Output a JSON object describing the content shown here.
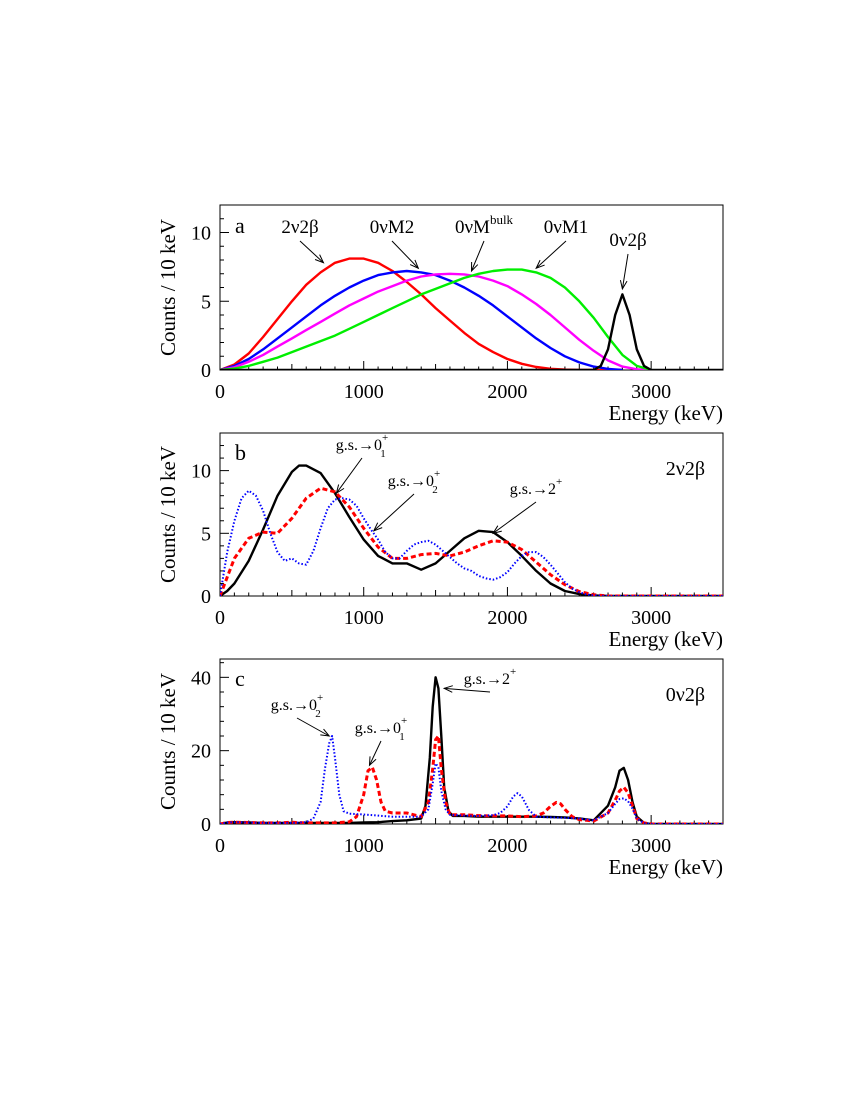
{
  "chart_data": [
    {
      "type": "line",
      "panel_label": "a",
      "xlabel": "Energy (keV)",
      "ylabel": "Counts / 10 keV",
      "xlim": [
        0,
        3500
      ],
      "ylim": [
        0,
        12
      ],
      "xticks": [
        0,
        1000,
        2000,
        3000
      ],
      "yticks": [
        0,
        5,
        10
      ],
      "grid": false,
      "annotations": [
        {
          "text": "2ν2β",
          "sup": "",
          "sub": "",
          "target": [
            720,
            7.8
          ]
        },
        {
          "text": "0νM2",
          "sup": "",
          "sub": "",
          "target": [
            1380,
            7.4
          ]
        },
        {
          "text": "0νM",
          "sup": "bulk",
          "sub": "",
          "target": [
            1750,
            7.2
          ]
        },
        {
          "text": "0νM1",
          "sup": "",
          "sub": "",
          "target": [
            2200,
            7.4
          ]
        },
        {
          "text": "0ν2β",
          "sup": "",
          "sub": "",
          "target": [
            2800,
            5.9
          ]
        }
      ],
      "series": [
        {
          "color": "#ff0000",
          "style": "solid",
          "x": [
            0,
            100,
            200,
            300,
            400,
            500,
            600,
            700,
            800,
            900,
            1000,
            1100,
            1200,
            1300,
            1400,
            1500,
            1600,
            1700,
            1800,
            1900,
            2000,
            2100,
            2200,
            2300,
            2400,
            2500,
            2600,
            2700,
            2800
          ],
          "y": [
            0,
            0.4,
            1.2,
            2.4,
            3.7,
            5.0,
            6.2,
            7.1,
            7.8,
            8.1,
            8.1,
            7.8,
            7.2,
            6.4,
            5.5,
            4.5,
            3.6,
            2.7,
            1.9,
            1.3,
            0.8,
            0.45,
            0.22,
            0.09,
            0.03,
            0.01,
            0,
            0,
            0
          ]
        },
        {
          "color": "#0000ff",
          "style": "solid",
          "x": [
            0,
            100,
            200,
            300,
            400,
            500,
            600,
            700,
            800,
            900,
            1000,
            1100,
            1200,
            1300,
            1400,
            1500,
            1600,
            1700,
            1800,
            1900,
            2000,
            2100,
            2200,
            2300,
            2400,
            2500,
            2600,
            2700,
            2800
          ],
          "y": [
            0,
            0.3,
            0.8,
            1.5,
            2.3,
            3.1,
            3.9,
            4.7,
            5.4,
            6.0,
            6.5,
            6.9,
            7.1,
            7.2,
            7.1,
            6.9,
            6.5,
            6.0,
            5.4,
            4.7,
            3.9,
            3.1,
            2.3,
            1.6,
            1.0,
            0.55,
            0.25,
            0.08,
            0
          ]
        },
        {
          "color": "#ff00ff",
          "style": "solid",
          "x": [
            0,
            100,
            200,
            300,
            400,
            500,
            600,
            700,
            800,
            900,
            1000,
            1100,
            1200,
            1300,
            1400,
            1500,
            1600,
            1700,
            1800,
            1900,
            2000,
            2100,
            2200,
            2300,
            2400,
            2500,
            2600,
            2700,
            2800,
            2900,
            3000
          ],
          "y": [
            0,
            0.2,
            0.6,
            1.1,
            1.7,
            2.3,
            2.9,
            3.5,
            4.1,
            4.7,
            5.2,
            5.7,
            6.1,
            6.5,
            6.8,
            6.95,
            7.0,
            6.95,
            6.8,
            6.5,
            6.1,
            5.5,
            4.8,
            4.0,
            3.1,
            2.2,
            1.4,
            0.7,
            0.25,
            0.05,
            0
          ]
        },
        {
          "color": "#00ee00",
          "style": "solid",
          "x": [
            0,
            100,
            200,
            300,
            400,
            500,
            600,
            700,
            800,
            900,
            1000,
            1100,
            1200,
            1300,
            1400,
            1500,
            1600,
            1700,
            1800,
            1900,
            2000,
            2100,
            2200,
            2300,
            2400,
            2500,
            2600,
            2700,
            2800,
            2900,
            3000
          ],
          "y": [
            0,
            0.1,
            0.3,
            0.6,
            0.9,
            1.3,
            1.7,
            2.1,
            2.5,
            3.0,
            3.5,
            4.0,
            4.5,
            5.0,
            5.5,
            5.9,
            6.3,
            6.7,
            7.0,
            7.2,
            7.3,
            7.3,
            7.1,
            6.7,
            6.0,
            5.0,
            3.8,
            2.4,
            1.1,
            0.3,
            0
          ]
        },
        {
          "color": "#000000",
          "style": "solid",
          "x": [
            0,
            2600,
            2650,
            2700,
            2750,
            2800,
            2850,
            2900,
            2950,
            3000,
            3500
          ],
          "y": [
            0,
            0,
            0.3,
            1.5,
            4.0,
            5.5,
            4.0,
            1.5,
            0.3,
            0,
            0
          ]
        }
      ]
    },
    {
      "type": "line",
      "panel_label": "b",
      "panel_tag": "2ν2β",
      "xlabel": "Energy (keV)",
      "ylabel": "Counts / 10 keV",
      "xlim": [
        0,
        3500
      ],
      "ylim": [
        0,
        13
      ],
      "xticks": [
        0,
        1000,
        2000,
        3000
      ],
      "yticks": [
        0,
        5,
        10
      ],
      "grid": false,
      "annotations": [
        {
          "text": "g.s.→0",
          "sup": "+",
          "sub": "1",
          "target": [
            810,
            8.2
          ]
        },
        {
          "text": "g.s.→0",
          "sup": "+",
          "sub": "2",
          "target": [
            1070,
            5.2
          ]
        },
        {
          "text": "g.s.→2",
          "sup": "+",
          "sub": "",
          "target": [
            1900,
            5.0
          ]
        }
      ],
      "series": [
        {
          "color": "#000000",
          "style": "solid",
          "x": [
            0,
            50,
            100,
            200,
            300,
            400,
            500,
            550,
            600,
            700,
            800,
            900,
            1000,
            1100,
            1200,
            1300,
            1400,
            1500,
            1600,
            1700,
            1800,
            1900,
            2000,
            2100,
            2200,
            2300,
            2400,
            2500,
            2600,
            2700,
            2800,
            2900,
            3000,
            3500
          ],
          "y": [
            0,
            0.4,
            1.0,
            2.8,
            5.3,
            8.0,
            9.9,
            10.4,
            10.4,
            9.8,
            8.2,
            6.3,
            4.5,
            3.2,
            2.6,
            2.6,
            2.1,
            2.6,
            3.6,
            4.6,
            5.2,
            5.1,
            4.3,
            3.2,
            2.0,
            1.0,
            0.4,
            0.15,
            0.05,
            0,
            0,
            0,
            0,
            0
          ]
        },
        {
          "color": "#ff0000",
          "style": "dashed",
          "x": [
            0,
            50,
            100,
            200,
            300,
            400,
            500,
            600,
            700,
            800,
            900,
            1000,
            1100,
            1200,
            1300,
            1400,
            1500,
            1600,
            1700,
            1800,
            1900,
            2000,
            2100,
            2200,
            2300,
            2400,
            2500,
            2600,
            2700,
            2800,
            3500
          ],
          "y": [
            0,
            1.5,
            3.0,
            4.6,
            5.1,
            5.0,
            6.2,
            7.8,
            8.6,
            8.3,
            7.1,
            5.4,
            3.9,
            3.0,
            3.0,
            3.3,
            3.4,
            3.2,
            3.5,
            4.0,
            4.4,
            4.3,
            3.7,
            2.7,
            1.7,
            0.9,
            0.35,
            0.1,
            0,
            0,
            0
          ]
        },
        {
          "color": "#0000ff",
          "style": "dotted",
          "x": [
            0,
            50,
            100,
            150,
            200,
            250,
            300,
            350,
            400,
            450,
            500,
            550,
            600,
            650,
            700,
            750,
            800,
            850,
            900,
            950,
            1000,
            1050,
            1100,
            1150,
            1200,
            1250,
            1300,
            1350,
            1400,
            1450,
            1500,
            1550,
            1600,
            1650,
            1700,
            1750,
            1800,
            1850,
            1900,
            1950,
            2000,
            2050,
            2100,
            2150,
            2200,
            2250,
            2300,
            2350,
            2400,
            2450,
            2500,
            2550,
            2600,
            2700,
            3500
          ],
          "y": [
            0,
            3.5,
            6.0,
            7.8,
            8.4,
            8.0,
            6.8,
            5.0,
            3.5,
            2.8,
            3.0,
            2.6,
            2.5,
            3.6,
            5.4,
            7.0,
            7.7,
            7.8,
            7.7,
            7.2,
            6.2,
            5.3,
            4.5,
            3.5,
            3.0,
            3.0,
            3.6,
            4.1,
            4.3,
            4.4,
            4.1,
            3.6,
            3.1,
            2.6,
            2.2,
            2.0,
            1.6,
            1.4,
            1.3,
            1.5,
            1.9,
            2.6,
            3.2,
            3.5,
            3.5,
            3.1,
            2.5,
            1.8,
            1.1,
            0.6,
            0.3,
            0.12,
            0.04,
            0,
            0
          ]
        }
      ]
    },
    {
      "type": "line",
      "panel_label": "c",
      "panel_tag": "0ν2β",
      "xlabel": "Energy (keV)",
      "ylabel": "Counts / 10 keV",
      "xlim": [
        0,
        3500
      ],
      "ylim": [
        0,
        45
      ],
      "xticks": [
        0,
        1000,
        2000,
        3000
      ],
      "yticks": [
        0,
        20,
        40
      ],
      "grid": false,
      "annotations": [
        {
          "text": "g.s.→0",
          "sup": "+",
          "sub": "2",
          "target": [
            760,
            24
          ]
        },
        {
          "text": "g.s.→0",
          "sup": "+",
          "sub": "1",
          "target": [
            1040,
            16
          ]
        },
        {
          "text": "g.s.→2",
          "sup": "+",
          "sub": "",
          "target": [
            1560,
            37
          ]
        }
      ],
      "series": [
        {
          "color": "#000000",
          "style": "solid",
          "x": [
            0,
            50,
            100,
            200,
            300,
            400,
            500,
            600,
            700,
            800,
            900,
            1000,
            1100,
            1200,
            1300,
            1400,
            1430,
            1460,
            1480,
            1500,
            1520,
            1540,
            1560,
            1590,
            1620,
            1700,
            1800,
            1900,
            2000,
            2100,
            2200,
            2300,
            2400,
            2500,
            2600,
            2700,
            2750,
            2780,
            2810,
            2840,
            2870,
            2900,
            2950,
            3000,
            3500
          ],
          "y": [
            0,
            0.4,
            0.5,
            0.4,
            0.3,
            0.3,
            0.3,
            0.3,
            0.3,
            0.3,
            0.3,
            0.4,
            0.5,
            0.8,
            1.0,
            1.5,
            5.0,
            18,
            32,
            40,
            37,
            24,
            10,
            3.5,
            2.2,
            2.2,
            2.0,
            2.0,
            2.0,
            2.0,
            2.0,
            1.9,
            1.8,
            1.5,
            1.0,
            5.0,
            10,
            14.5,
            15.3,
            12,
            6,
            2.0,
            0.3,
            0,
            0
          ]
        },
        {
          "color": "#ff0000",
          "style": "dashed",
          "x": [
            0,
            50,
            100,
            200,
            300,
            400,
            500,
            600,
            700,
            800,
            900,
            950,
            1000,
            1030,
            1060,
            1090,
            1120,
            1150,
            1200,
            1300,
            1400,
            1450,
            1480,
            1500,
            1520,
            1540,
            1570,
            1600,
            1700,
            1800,
            1900,
            2000,
            2100,
            2200,
            2250,
            2300,
            2340,
            2370,
            2400,
            2450,
            2500,
            2550,
            2600,
            2700,
            2750,
            2780,
            2810,
            2840,
            2870,
            2900,
            2950,
            3000,
            3500
          ],
          "y": [
            0,
            0.4,
            0.5,
            0.4,
            0.3,
            0.3,
            0.5,
            0.3,
            0.3,
            0.3,
            0.6,
            2.0,
            8.0,
            14.5,
            15.5,
            12,
            6.0,
            3.5,
            3.0,
            3.0,
            2.0,
            6.0,
            15,
            23,
            24,
            15,
            6.0,
            2.5,
            2.5,
            2.3,
            2.2,
            2.2,
            2.0,
            2.2,
            3.0,
            4.8,
            5.9,
            5.5,
            4.0,
            2.0,
            1.2,
            1.0,
            0.8,
            3.0,
            6.5,
            9.0,
            10,
            8.5,
            5.0,
            1.5,
            0.3,
            0,
            0
          ]
        },
        {
          "color": "#0000ff",
          "style": "dotted",
          "x": [
            0,
            50,
            100,
            200,
            300,
            400,
            500,
            600,
            650,
            700,
            730,
            760,
            780,
            800,
            830,
            860,
            900,
            1000,
            1100,
            1200,
            1300,
            1400,
            1450,
            1480,
            1500,
            1520,
            1540,
            1570,
            1600,
            1700,
            1800,
            1900,
            1950,
            2000,
            2040,
            2070,
            2100,
            2150,
            2200,
            2300,
            2400,
            2500,
            2600,
            2700,
            2750,
            2780,
            2810,
            2840,
            2870,
            2900,
            2950,
            3000,
            3500
          ],
          "y": [
            0,
            0.4,
            0.5,
            0.4,
            0.3,
            0.3,
            0.3,
            0.5,
            1.5,
            6.0,
            15,
            22,
            24,
            18,
            8.0,
            3.5,
            2.8,
            2.6,
            2.3,
            2.0,
            2.0,
            2.0,
            4.0,
            11,
            16.5,
            15.5,
            9.0,
            4.0,
            2.5,
            2.3,
            2.2,
            2.4,
            3.0,
            4.8,
            7.5,
            8.4,
            7.5,
            3.8,
            2.0,
            1.8,
            1.7,
            1.5,
            1.0,
            3.0,
            5.5,
            6.8,
            7.0,
            6.2,
            4.2,
            1.5,
            0.2,
            0,
            0
          ]
        }
      ]
    }
  ]
}
